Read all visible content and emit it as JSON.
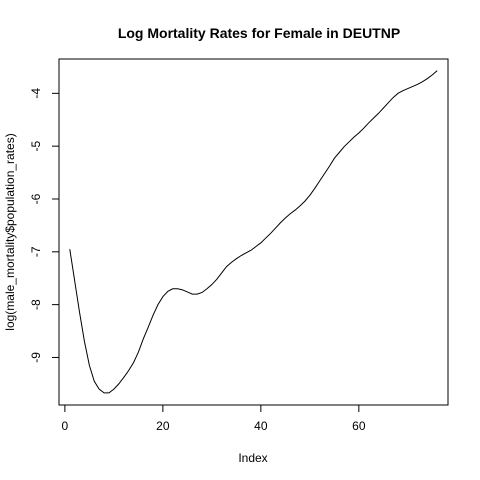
{
  "chart_data": {
    "type": "line",
    "title": "Log Mortality Rates for Female in DEUTNP",
    "xlabel": "Index",
    "ylabel": "log(male_mortality$population_rates)",
    "xlim": [
      -1.2,
      78.2
    ],
    "ylim": [
      -9.9,
      -3.35
    ],
    "x_ticks": [
      0,
      20,
      40,
      60
    ],
    "y_ticks": [
      -9,
      -8,
      -7,
      -6,
      -5,
      -4
    ],
    "grid": false,
    "legend": "none",
    "line_color": "#000000",
    "series": [
      {
        "x": [
          1,
          2,
          3,
          4,
          5,
          6,
          7,
          8,
          9,
          10,
          11,
          12,
          13,
          14,
          15,
          16,
          17,
          18,
          19,
          20,
          21,
          22,
          23,
          24,
          25,
          26,
          27,
          28,
          29,
          30,
          31,
          32,
          33,
          34,
          35,
          36,
          37,
          38,
          39,
          40,
          41,
          42,
          43,
          44,
          45,
          46,
          47,
          48,
          49,
          50,
          51,
          52,
          53,
          54,
          55,
          56,
          57,
          58,
          59,
          60,
          61,
          62,
          63,
          64,
          65,
          66,
          67,
          68,
          69,
          70,
          71,
          72,
          73,
          74,
          75,
          76
        ],
        "values": [
          -6.95,
          -7.55,
          -8.15,
          -8.7,
          -9.15,
          -9.45,
          -9.6,
          -9.67,
          -9.67,
          -9.6,
          -9.5,
          -9.38,
          -9.25,
          -9.1,
          -8.9,
          -8.65,
          -8.43,
          -8.2,
          -8.0,
          -7.85,
          -7.75,
          -7.7,
          -7.7,
          -7.72,
          -7.76,
          -7.8,
          -7.8,
          -7.77,
          -7.7,
          -7.62,
          -7.52,
          -7.4,
          -7.28,
          -7.2,
          -7.13,
          -7.07,
          -7.02,
          -6.97,
          -6.9,
          -6.83,
          -6.74,
          -6.65,
          -6.55,
          -6.45,
          -6.36,
          -6.28,
          -6.21,
          -6.13,
          -6.04,
          -5.93,
          -5.8,
          -5.66,
          -5.52,
          -5.38,
          -5.23,
          -5.12,
          -5.01,
          -4.92,
          -4.83,
          -4.75,
          -4.66,
          -4.56,
          -4.47,
          -4.38,
          -4.28,
          -4.18,
          -4.08,
          -4.0,
          -3.95,
          -3.91,
          -3.87,
          -3.83,
          -3.78,
          -3.72,
          -3.65,
          -3.57
        ]
      }
    ]
  }
}
